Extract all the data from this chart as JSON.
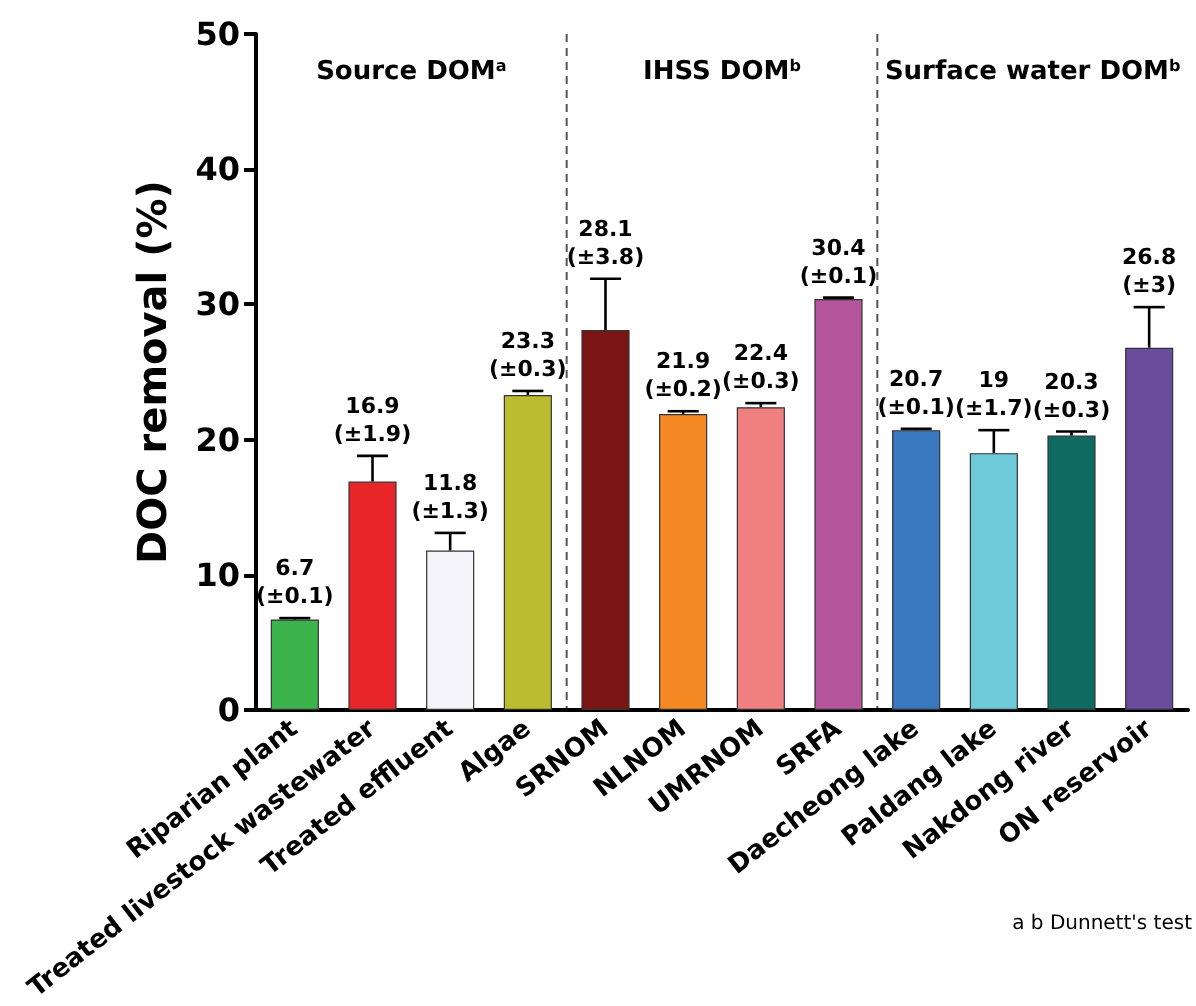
{
  "chart_data": {
    "type": "bar",
    "ylabel": "DOC removal (%)",
    "categories": [
      "Riparian plant",
      "Treated livestock wastewater",
      "Treated effluent",
      "Algae",
      "SRNOM",
      "NLNOM",
      "UMRNOM",
      "SRFA",
      "Daecheong lake",
      "Paldang lake",
      "Nakdong river",
      "ON reservoir"
    ],
    "values": [
      6.7,
      16.9,
      11.8,
      23.3,
      28.1,
      21.9,
      22.4,
      30.4,
      20.7,
      19,
      20.3,
      26.8
    ],
    "colors": [
      "#3cb44b",
      "#e8262a",
      "#f4f4fa",
      "#bcbc30",
      "#7b1515",
      "#f58a25",
      "#f08080",
      "#b5559c",
      "#3a78c0",
      "#6ecad8",
      "#0f6a62",
      "#6a4c9c"
    ],
    "errors": [
      [
        6.7,
        6.8
      ],
      [
        16.9,
        18.8
      ],
      [
        11.8,
        13.1
      ],
      [
        23.3,
        23.6
      ],
      [
        28.1,
        31.9
      ],
      [
        21.9,
        22.1
      ],
      [
        22.4,
        22.7
      ],
      [
        30.4,
        30.5
      ],
      [
        20.7,
        20.8
      ],
      [
        19,
        20.7
      ],
      [
        20.3,
        20.6
      ],
      [
        26.8,
        29.8
      ]
    ],
    "value_labels": [
      "6.7\n(±0.1)",
      "16.9\n(±1.9)",
      "11.8\n(±1.3)",
      "23.3\n(±0.3)",
      "28.1\n(±3.8)",
      "21.9\n(±0.2)",
      "22.4\n(±0.3)",
      "30.4\n(±0.1)",
      "20.7\n(±0.1)",
      "19\n(±1.7)",
      "20.3\n(±0.3)",
      "26.8\n(±3)"
    ],
    "ylim": [
      0,
      50
    ],
    "yticks": [
      0,
      10,
      20,
      30,
      40,
      50
    ],
    "grid": false,
    "annotations": [
      "Source DOM$^{a}$",
      "IHSS DOM$^{b}$",
      "Surface water DOM$^{b}$",
      "a b Dunnett's test"
    ]
  }
}
